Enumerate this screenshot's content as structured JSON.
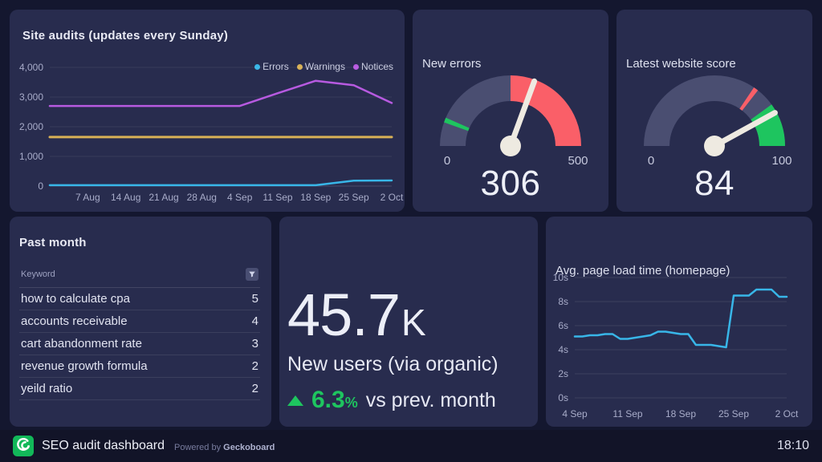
{
  "theme": {
    "page_bg": "#14172f",
    "panel_bg": "#282c4e",
    "footer_bg": "#121428",
    "text": "#e9eaf4",
    "muted": "#9da1c0",
    "cyan": "#38b6e8",
    "yellow": "#d8b156",
    "purple": "#b75ae0",
    "red": "#fa5f68",
    "green": "#1ec55f",
    "gauge_track": "#4a4e71",
    "needle": "#eeeae1",
    "logo_green": "#12b859"
  },
  "top_row": {
    "site_audits": {
      "title": "Site audits (updates every Sunday)",
      "chart_data": {
        "type": "line",
        "x_labels": [
          "7 Aug",
          "14 Aug",
          "21 Aug",
          "28 Aug",
          "4 Sep",
          "11 Sep",
          "18 Sep",
          "25 Sep",
          "2 Oct"
        ],
        "tick_indices": [
          1,
          2,
          3,
          4,
          5,
          6,
          7,
          8,
          9
        ],
        "ylim": [
          0,
          4000
        ],
        "yticks": [
          {
            "label": "4,000",
            "value": 4000
          },
          {
            "label": "3,000",
            "value": 3000
          },
          {
            "label": "2,000",
            "value": 2000
          },
          {
            "label": "1,000",
            "value": 1000
          },
          {
            "label": "0",
            "value": 0
          }
        ],
        "grid": "horizontal",
        "legend_position": "top-right",
        "series": [
          {
            "name": "Errors",
            "color": "#38b6e8",
            "values": [
              30,
              30,
              30,
              30,
              30,
              30,
              30,
              30,
              180,
              190
            ]
          },
          {
            "name": "Warnings",
            "color": "#d8b156",
            "values": [
              1650,
              1650,
              1650,
              1650,
              1650,
              1650,
              1650,
              1650,
              1650,
              1650
            ]
          },
          {
            "name": "Notices",
            "color": "#b75ae0",
            "values": [
              2700,
              2700,
              2700,
              2700,
              2700,
              2700,
              3130,
              3550,
              3400,
              2800
            ]
          }
        ]
      }
    },
    "new_errors_gauge": {
      "title": "New errors",
      "min_label": "0",
      "max_label": "500",
      "value_label": "306",
      "chart_data": {
        "type": "gauge",
        "min": 0,
        "max": 500,
        "value": 306,
        "zones": [
          {
            "from": 250,
            "to": 500,
            "color": "red"
          }
        ],
        "markers": [
          {
            "at": 60,
            "color": "green"
          }
        ]
      }
    },
    "website_score_gauge": {
      "title": "Latest website score",
      "min_label": "0",
      "max_label": "100",
      "value_label": "84",
      "chart_data": {
        "type": "gauge",
        "min": 0,
        "max": 100,
        "value": 84,
        "zones": [
          {
            "from": 80,
            "to": 100,
            "color": "green"
          }
        ],
        "markers": [
          {
            "at": 70,
            "color": "red"
          }
        ]
      }
    }
  },
  "bottom_row": {
    "heading": "Past month",
    "keywords_table": {
      "chart_data": {
        "type": "table",
        "header": "Keyword",
        "rows": [
          [
            "how to calculate cpa",
            "5"
          ],
          [
            "accounts receivable",
            "4"
          ],
          [
            "cart abandonment rate",
            "3"
          ],
          [
            "revenue growth formula",
            "2"
          ],
          [
            "yeild ratio",
            "2"
          ]
        ]
      }
    },
    "new_users": {
      "value": "45.7",
      "unit": "K",
      "label": "New users (via organic)",
      "delta_value": "6.3",
      "delta_unit": "%",
      "delta_text": "vs prev. month",
      "delta_direction": "up"
    },
    "page_load": {
      "title": "Avg. page load time (homepage)",
      "chart_data": {
        "type": "line",
        "x_labels": [
          "4 Sep",
          "11 Sep",
          "18 Sep",
          "25 Sep",
          "2 Oct"
        ],
        "tick_indices": [
          0,
          7,
          14,
          21,
          28
        ],
        "ylim": [
          0,
          10
        ],
        "yticks": [
          {
            "label": "10s",
            "value": 10
          },
          {
            "label": "8s",
            "value": 8
          },
          {
            "label": "6s",
            "value": 6
          },
          {
            "label": "4s",
            "value": 4
          },
          {
            "label": "2s",
            "value": 2
          },
          {
            "label": "0s",
            "value": 0
          }
        ],
        "grid": "horizontal",
        "series": [
          {
            "name": "Page load time",
            "color": "#38b6e8",
            "values": [
              5.1,
              5.1,
              5.2,
              5.2,
              5.3,
              5.3,
              4.9,
              4.9,
              5.0,
              5.1,
              5.2,
              5.5,
              5.5,
              5.4,
              5.3,
              5.3,
              4.4,
              4.4,
              4.4,
              4.3,
              4.2,
              8.5,
              8.5,
              8.5,
              9.0,
              9.0,
              9.0,
              8.4,
              8.4
            ]
          }
        ]
      }
    }
  },
  "footer": {
    "title": "SEO audit dashboard",
    "powered_by": "Powered by",
    "brand": "Geckoboard",
    "time": "18:10"
  }
}
